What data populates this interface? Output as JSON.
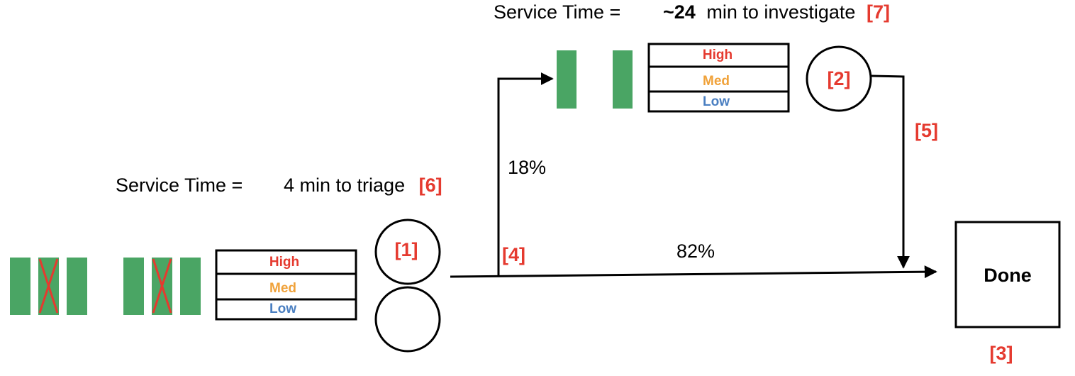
{
  "colors": {
    "accent_red": "#e53a2f",
    "bar_green": "#4aa564",
    "high": "#e53a2f",
    "med": "#f0a23a",
    "low": "#4a7fc1",
    "stroke": "#000000"
  },
  "triage": {
    "service_prefix": "Service Time =",
    "service_value": "4 min to triage",
    "ref": "[6]",
    "server_ref": "[1]"
  },
  "investigate": {
    "service_prefix": "Service Time =",
    "service_value_bold": "~24",
    "service_value_rest": "min to investigate",
    "ref": "[7]",
    "server_ref": "[2]"
  },
  "queue_labels": {
    "high": "High",
    "med": "Med",
    "low": "Low"
  },
  "routing": {
    "branch_ref": "[4]",
    "up_percent": "18%",
    "straight_percent": "82%",
    "down_ref": "[5]"
  },
  "done": {
    "label": "Done",
    "ref": "[3]"
  }
}
